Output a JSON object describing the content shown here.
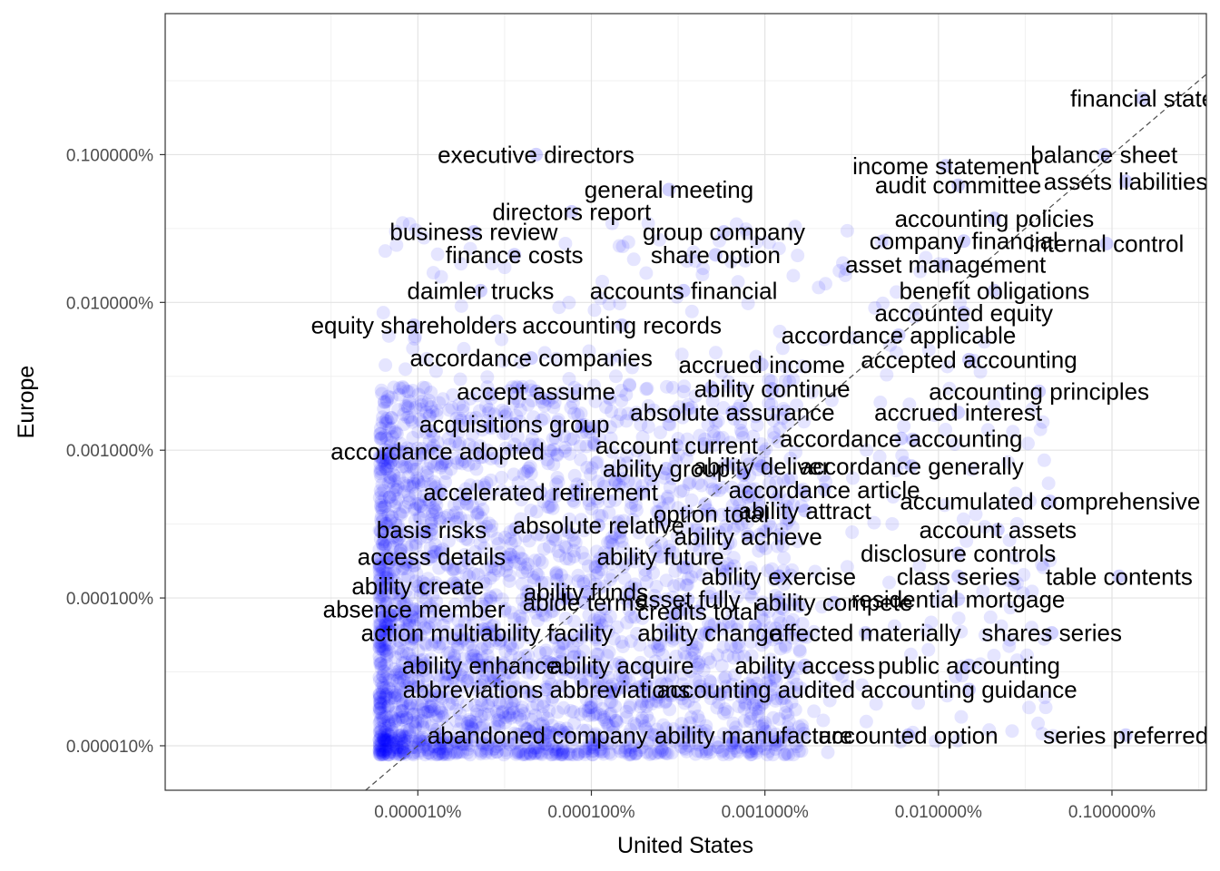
{
  "chart_data": {
    "type": "scatter",
    "xlabel": "United States",
    "ylabel": "Europe",
    "x_scale": "log10",
    "y_scale": "log10",
    "xlim": [
      3.5e-09,
      0.0035
    ],
    "ylim": [
      5e-08,
      0.009
    ],
    "x_ticks": [
      {
        "value": 1e-07,
        "label": "0.000010%"
      },
      {
        "value": 1e-06,
        "label": "0.000100%"
      },
      {
        "value": 1e-05,
        "label": "0.001000%"
      },
      {
        "value": 0.0001,
        "label": "0.010000%"
      },
      {
        "value": 0.001,
        "label": "0.100000%"
      }
    ],
    "y_ticks": [
      {
        "value": 1e-07,
        "label": "0.000010%"
      },
      {
        "value": 1e-06,
        "label": "0.000100%"
      },
      {
        "value": 1e-05,
        "label": "0.001000%"
      },
      {
        "value": 0.0001,
        "label": "0.010000%"
      },
      {
        "value": 0.001,
        "label": "0.100000%"
      }
    ],
    "grid": true,
    "reference_line": "y = x (dashed)",
    "point_color": "#0000ff",
    "point_alpha": 0.1,
    "points": [
      {
        "word": "financial state",
        "x": 0.0015,
        "y": 0.0024
      },
      {
        "word": "balance sheet",
        "x": 0.0009,
        "y": 0.001
      },
      {
        "word": "assets liabilities",
        "x": 0.0012,
        "y": 0.00066
      },
      {
        "word": "executive directors",
        "x": 4.8e-07,
        "y": 0.001
      },
      {
        "word": "income statement",
        "x": 0.00011,
        "y": 0.00084
      },
      {
        "word": "audit committee",
        "x": 0.00013,
        "y": 0.00062
      },
      {
        "word": "general meeting",
        "x": 2.8e-06,
        "y": 0.00058
      },
      {
        "word": "directors report",
        "x": 7.7e-07,
        "y": 0.00041
      },
      {
        "word": "accounting policies",
        "x": 0.00021,
        "y": 0.00037
      },
      {
        "word": "business review",
        "x": 2.1e-07,
        "y": 0.0003
      },
      {
        "word": "group company",
        "x": 5.8e-06,
        "y": 0.0003
      },
      {
        "word": "company financial",
        "x": 0.00014,
        "y": 0.00026
      },
      {
        "word": "internal control",
        "x": 0.00093,
        "y": 0.00025
      },
      {
        "word": "finance costs",
        "x": 3.6e-07,
        "y": 0.00021
      },
      {
        "word": "share option",
        "x": 5.2e-06,
        "y": 0.00021
      },
      {
        "word": "asset management",
        "x": 0.00011,
        "y": 0.00018
      },
      {
        "word": "daimler trucks",
        "x": 2.3e-07,
        "y": 0.00012
      },
      {
        "word": "accounts financial",
        "x": 3.4e-06,
        "y": 0.00012
      },
      {
        "word": "benefit obligations",
        "x": 0.00021,
        "y": 0.00012
      },
      {
        "word": "accounted equity",
        "x": 0.00014,
        "y": 8.5e-05
      },
      {
        "word": "equity shareholders",
        "x": 9.5e-08,
        "y": 7e-05
      },
      {
        "word": "accounting records",
        "x": 1.5e-06,
        "y": 7e-05
      },
      {
        "word": "accordance applicable",
        "x": 5.9e-05,
        "y": 6e-05
      },
      {
        "word": "accordance companies",
        "x": 4.5e-07,
        "y": 4.2e-05
      },
      {
        "word": "accepted accounting",
        "x": 0.00015,
        "y": 4.1e-05
      },
      {
        "word": "accrued income",
        "x": 9.6e-06,
        "y": 3.8e-05
      },
      {
        "word": "ability continue",
        "x": 1.1e-05,
        "y": 2.6e-05
      },
      {
        "word": "accept assume",
        "x": 4.8e-07,
        "y": 2.5e-05
      },
      {
        "word": "accounting principles",
        "x": 0.00038,
        "y": 2.5e-05
      },
      {
        "word": "absolute assurance",
        "x": 6.5e-06,
        "y": 1.8e-05
      },
      {
        "word": "accrued interest",
        "x": 0.00013,
        "y": 1.8e-05
      },
      {
        "word": "acquisitions group",
        "x": 3.6e-07,
        "y": 1.5e-05
      },
      {
        "word": "accordance accounting",
        "x": 6.1e-05,
        "y": 1.2e-05
      },
      {
        "word": "account current",
        "x": 3.1e-06,
        "y": 1.08e-05
      },
      {
        "word": "accordance adopted",
        "x": 1.3e-07,
        "y": 9.8e-06
      },
      {
        "word": "ability group",
        "x": 2.7e-06,
        "y": 7.5e-06
      },
      {
        "word": "ability deliver",
        "x": 9.6e-06,
        "y": 7.8e-06
      },
      {
        "word": "accordance generally",
        "x": 7e-05,
        "y": 7.8e-06
      },
      {
        "word": "accelerated retirement",
        "x": 5.1e-07,
        "y": 5.2e-06
      },
      {
        "word": "accordance article",
        "x": 2.2e-05,
        "y": 5.4e-06
      },
      {
        "word": "accumulated comprehensive",
        "x": 0.00044,
        "y": 4.5e-06
      },
      {
        "word": "option total",
        "x": 4.9e-06,
        "y": 3.7e-06
      },
      {
        "word": "ability attract",
        "x": 1.7e-05,
        "y": 3.9e-06
      },
      {
        "word": "basis risks",
        "x": 1.2e-07,
        "y": 2.9e-06
      },
      {
        "word": "absolute relative",
        "x": 1.1e-06,
        "y": 3.1e-06
      },
      {
        "word": "account assets",
        "x": 0.00022,
        "y": 2.9e-06
      },
      {
        "word": "ability achieve",
        "x": 8e-06,
        "y": 2.6e-06
      },
      {
        "word": "access details",
        "x": 1.2e-07,
        "y": 1.9e-06
      },
      {
        "word": "ability future",
        "x": 2.5e-06,
        "y": 1.9e-06
      },
      {
        "word": "disclosure controls",
        "x": 0.00013,
        "y": 2e-06
      },
      {
        "word": "ability exercise",
        "x": 1.2e-05,
        "y": 1.4e-06
      },
      {
        "word": "ability create",
        "x": 1e-07,
        "y": 1.2e-06
      },
      {
        "word": "ability funds",
        "x": 9.3e-07,
        "y": 1.1e-06
      },
      {
        "word": "class series",
        "x": 0.00013,
        "y": 1.4e-06
      },
      {
        "word": "table contents",
        "x": 0.0011,
        "y": 1.4e-06
      },
      {
        "word": "asset fully",
        "x": 3.6e-06,
        "y": 9.8e-07
      },
      {
        "word": "residential mortgage",
        "x": 0.00013,
        "y": 9.8e-07
      },
      {
        "word": "abide terms",
        "x": 9.1e-07,
        "y": 9.3e-07
      },
      {
        "word": "ability compete",
        "x": 2.5e-05,
        "y": 9.3e-07
      },
      {
        "word": "absence member",
        "x": 9.5e-08,
        "y": 8.4e-07
      },
      {
        "word": "credits total",
        "x": 4.1e-06,
        "y": 8.1e-07
      },
      {
        "word": "action multiability facility",
        "x": 2.5e-07,
        "y": 5.8e-07
      },
      {
        "word": "ability change",
        "x": 4.8e-06,
        "y": 5.8e-07
      },
      {
        "word": "affected materially",
        "x": 3.8e-05,
        "y": 5.8e-07
      },
      {
        "word": "shares series",
        "x": 0.00045,
        "y": 5.8e-07
      },
      {
        "word": "ability enhance",
        "x": 2.3e-07,
        "y": 3.5e-07
      },
      {
        "word": "ability acquire",
        "x": 1.5e-06,
        "y": 3.5e-07
      },
      {
        "word": "ability access",
        "x": 1.7e-05,
        "y": 3.5e-07
      },
      {
        "word": "public accounting",
        "x": 0.00015,
        "y": 3.5e-07
      },
      {
        "word": "abbreviations abbreviations",
        "x": 5.5e-07,
        "y": 2.4e-07
      },
      {
        "word": "accounting audited",
        "x": 8.9e-06,
        "y": 2.4e-07
      },
      {
        "word": "accounting guidance",
        "x": 0.00015,
        "y": 2.4e-07
      },
      {
        "word": "abandoned company",
        "x": 4.9e-07,
        "y": 1.18e-07
      },
      {
        "word": "ability manufacture",
        "x": 8.6e-06,
        "y": 1.18e-07
      },
      {
        "word": "accounted option",
        "x": 6.7e-05,
        "y": 1.18e-07
      },
      {
        "word": "series preferred",
        "x": 0.0012,
        "y": 1.18e-07
      }
    ]
  }
}
